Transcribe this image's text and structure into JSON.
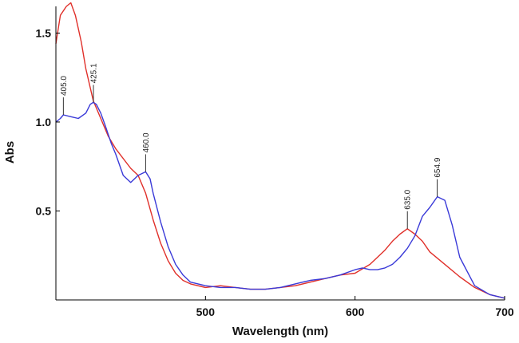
{
  "chart_data": {
    "type": "line",
    "xlabel": "Wavelength (nm)",
    "ylabel": "Abs",
    "xlim": [
      400,
      700
    ],
    "ylim": [
      0,
      1.65
    ],
    "x_ticks": [
      500,
      600,
      700
    ],
    "x_tick_labels": [
      "500",
      "600",
      "700"
    ],
    "y_ticks": [
      0.5,
      1.0,
      1.5
    ],
    "y_tick_labels": [
      "0.5",
      "1.0",
      "1.5"
    ],
    "grid": false,
    "legend": "none",
    "series": [
      {
        "color": "#e0302a",
        "x": [
          400,
          403,
          407,
          410,
          413,
          417,
          420,
          425,
          430,
          435,
          440,
          450,
          455,
          460,
          465,
          470,
          475,
          480,
          485,
          490,
          500,
          510,
          520,
          530,
          540,
          550,
          560,
          570,
          580,
          590,
          600,
          610,
          620,
          625,
          630,
          635,
          640,
          645,
          650,
          660,
          670,
          680,
          690,
          700
        ],
        "y": [
          1.44,
          1.6,
          1.65,
          1.67,
          1.6,
          1.45,
          1.3,
          1.12,
          1.02,
          0.92,
          0.85,
          0.74,
          0.7,
          0.6,
          0.45,
          0.32,
          0.22,
          0.15,
          0.11,
          0.09,
          0.07,
          0.08,
          0.07,
          0.06,
          0.06,
          0.07,
          0.08,
          0.1,
          0.12,
          0.14,
          0.15,
          0.2,
          0.28,
          0.33,
          0.37,
          0.4,
          0.37,
          0.33,
          0.27,
          0.2,
          0.13,
          0.07,
          0.03,
          0.01
        ]
      },
      {
        "color": "#3a3ad8",
        "x": [
          400,
          403,
          405,
          410,
          415,
          420,
          423,
          425,
          427,
          430,
          433,
          437,
          440,
          445,
          450,
          455,
          460,
          463,
          465,
          470,
          475,
          480,
          485,
          490,
          500,
          510,
          520,
          530,
          540,
          550,
          560,
          570,
          580,
          590,
          600,
          605,
          610,
          615,
          620,
          625,
          630,
          635,
          640,
          645,
          650,
          655,
          660,
          665,
          670,
          680,
          690,
          700
        ],
        "y": [
          1.0,
          1.02,
          1.04,
          1.03,
          1.02,
          1.05,
          1.1,
          1.11,
          1.1,
          1.05,
          0.98,
          0.88,
          0.82,
          0.7,
          0.66,
          0.7,
          0.72,
          0.68,
          0.6,
          0.44,
          0.3,
          0.2,
          0.14,
          0.1,
          0.08,
          0.07,
          0.07,
          0.06,
          0.06,
          0.07,
          0.09,
          0.11,
          0.12,
          0.14,
          0.17,
          0.18,
          0.17,
          0.17,
          0.18,
          0.2,
          0.24,
          0.29,
          0.36,
          0.47,
          0.52,
          0.58,
          0.56,
          0.42,
          0.24,
          0.08,
          0.03,
          0.01
        ]
      }
    ],
    "annotations": [
      {
        "text": "405.0",
        "x": 405.0,
        "y": 1.04
      },
      {
        "text": "425.1",
        "x": 425.1,
        "y": 1.11
      },
      {
        "text": "460.0",
        "x": 460.0,
        "y": 0.72
      },
      {
        "text": "635.0",
        "x": 635.0,
        "y": 0.4
      },
      {
        "text": "654.9",
        "x": 654.9,
        "y": 0.58
      }
    ]
  }
}
